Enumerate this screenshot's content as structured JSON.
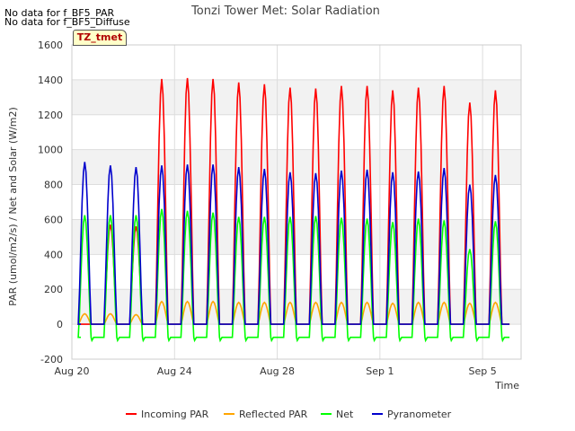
{
  "notes": [
    "No data for f_BF5_PAR",
    "No data for f_BF5_Diffuse"
  ],
  "badge": "TZ_tmet",
  "chart_data": {
    "type": "line",
    "title": "Tonzi Tower Met: Solar Radiation",
    "xlabel": "Time",
    "ylabel": "PAR (umol/m2/s) / Net and Solar (W/m2)",
    "ylim": [
      -200,
      1600
    ],
    "yticks": [
      -200,
      0,
      200,
      400,
      600,
      800,
      1000,
      1200,
      1400,
      1600
    ],
    "xlim": [
      "2023-08-20",
      "2023-09-06T12:00"
    ],
    "xticks": [
      {
        "label": "Aug 20",
        "day": 0
      },
      {
        "label": "Aug 24",
        "day": 4
      },
      {
        "label": "Aug 28",
        "day": 8
      },
      {
        "label": "Sep 1",
        "day": 12
      },
      {
        "label": "Sep 5",
        "day": 16
      }
    ],
    "grid": true,
    "legend_position": "bottom",
    "day_offset": 0.5,
    "series": [
      {
        "name": "Incoming PAR",
        "color": "#ff0000",
        "daily_peak": [
          0,
          570,
          560,
          1405,
          1410,
          1405,
          1385,
          1375,
          1355,
          1350,
          1365,
          1365,
          1340,
          1355,
          1365,
          1270,
          1340
        ]
      },
      {
        "name": "Reflected PAR",
        "color": "#ffa500",
        "daily_peak": [
          60,
          60,
          55,
          130,
          130,
          130,
          125,
          125,
          125,
          125,
          125,
          125,
          120,
          125,
          125,
          120,
          125
        ]
      },
      {
        "name": "Net",
        "color": "#00ff00",
        "night": -75,
        "daily_peak": [
          625,
          625,
          625,
          660,
          650,
          640,
          615,
          615,
          615,
          620,
          610,
          605,
          585,
          605,
          595,
          430,
          590
        ]
      },
      {
        "name": "Pyranometer",
        "color": "#0000cc",
        "daily_peak": [
          930,
          910,
          900,
          910,
          915,
          915,
          900,
          890,
          870,
          865,
          880,
          885,
          870,
          875,
          895,
          800,
          855
        ]
      }
    ]
  }
}
